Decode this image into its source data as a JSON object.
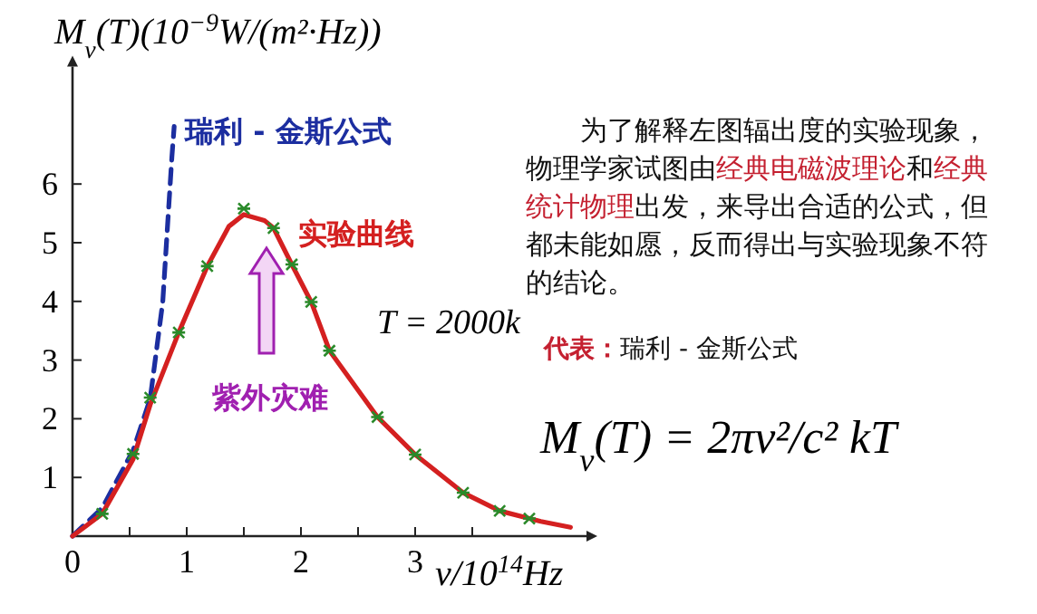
{
  "chart_data": {
    "type": "line",
    "ylabel": "M$_{ν}$(T)(10$^{−9}$W/(m²·Hz))",
    "xlabel": "ν/10$^{14}$Hz",
    "xlim": [
      0,
      4.5
    ],
    "ylim": [
      0,
      8
    ],
    "xticks": [
      0,
      {
        "value": 0.5,
        "label": null
      },
      1,
      {
        "value": 1.5,
        "label": null
      },
      2,
      {
        "value": 2.5,
        "label": null
      },
      3,
      {
        "value": 3.5,
        "label": null
      }
    ],
    "yticks": [
      1,
      2,
      3,
      4,
      5,
      6
    ],
    "series": [
      {
        "name": "瑞利 - 金斯公式",
        "color": "#1c2ea0",
        "line_style": "dashed",
        "marker": "none",
        "x": [
          0,
          0.26,
          0.53,
          0.68,
          0.79,
          0.87,
          0.89
        ],
        "values": [
          0,
          0.48,
          1.46,
          2.34,
          3.99,
          6.46,
          6.98
        ]
      },
      {
        "name": "实验曲线",
        "color": "#d42020",
        "line_style": "solid",
        "marker": "none",
        "x": [
          0,
          0.26,
          0.53,
          0.68,
          0.93,
          1.18,
          1.37,
          1.5,
          1.68,
          1.76,
          1.92,
          2.09,
          2.25,
          2.67,
          3.0,
          3.42,
          3.74,
          4.1,
          4.36
        ],
        "values": [
          0,
          0.38,
          1.31,
          2.24,
          3.47,
          4.6,
          5.28,
          5.48,
          5.38,
          5.25,
          4.63,
          3.99,
          3.16,
          2.03,
          1.39,
          0.74,
          0.43,
          0.25,
          0.15
        ]
      },
      {
        "type": "scatter",
        "color": "#2a8a2a",
        "marker": "cross",
        "x": [
          0.26,
          0.53,
          0.68,
          0.93,
          1.18,
          1.5,
          1.76,
          1.92,
          2.09,
          2.25,
          2.67,
          3.0,
          3.42,
          3.74,
          4.0
        ],
        "values": [
          0.38,
          1.4,
          2.36,
          3.47,
          4.6,
          5.58,
          5.25,
          4.63,
          3.99,
          3.16,
          2.03,
          1.39,
          0.74,
          0.43,
          0.3
        ]
      }
    ],
    "annotations": [
      "为了解释左图辐出度的实验现象，物理学家试图由",
      "经典电磁波理论",
      "和",
      "经典统计物理",
      "出发，来导出合适的公式，但都未能如愿，反而得出与实验现象不符的结论。",
      "代表：",
      "瑞利 - 金斯公式",
      "M$_{ν}$(T) = 2πν²/c² kT",
      "T = 2000k",
      "紫外灾难"
    ],
    "grid": false
  }
}
